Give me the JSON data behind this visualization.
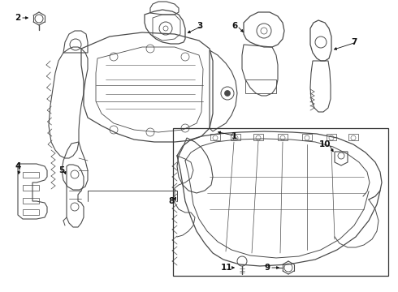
{
  "bg_color": "#ffffff",
  "lc": "#4a4a4a",
  "lc2": "#222222",
  "fig_w": 4.9,
  "fig_h": 3.6,
  "dpi": 100
}
